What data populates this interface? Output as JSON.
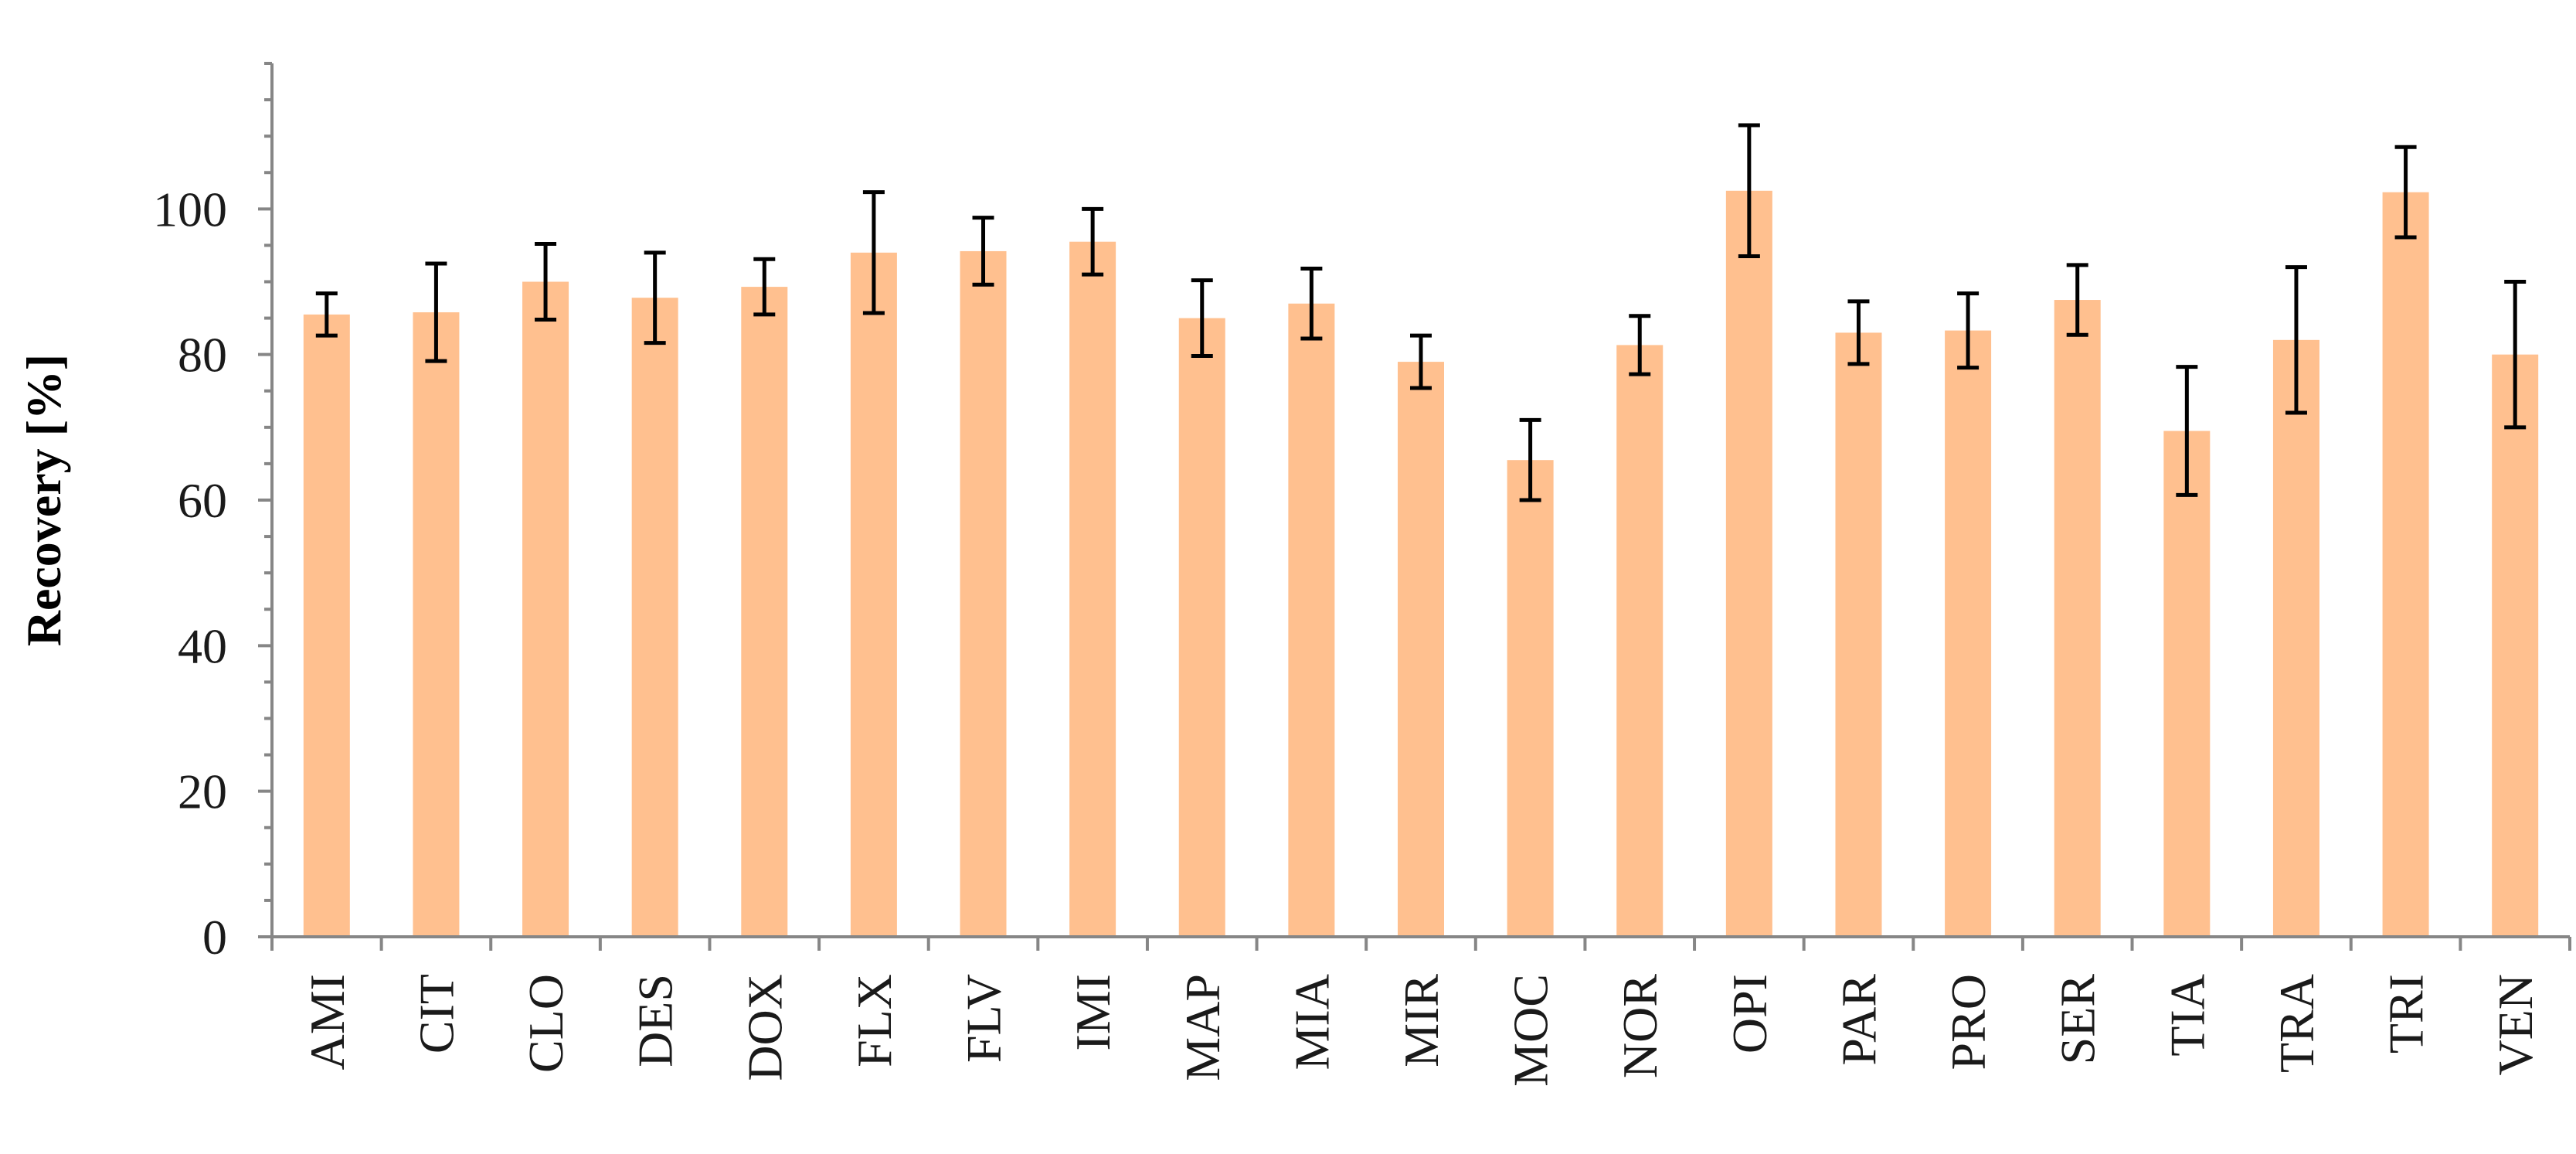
{
  "chart_data": {
    "type": "bar",
    "title": "",
    "xlabel": "",
    "ylabel": "Recovery [%]",
    "ylim": [
      0,
      120
    ],
    "yticks": [
      0,
      20,
      40,
      60,
      80,
      100
    ],
    "grid": false,
    "legend": "none",
    "colors": {
      "bar": "#FFC08F",
      "error_bar": "#000000",
      "axis": "#868686",
      "text": "#1a1a1a"
    },
    "categories": [
      "AMI",
      "CIT",
      "CLO",
      "DES",
      "DOX",
      "FLX",
      "FLV",
      "IMI",
      "MAP",
      "MIA",
      "MIR",
      "MOC",
      "NOR",
      "OPI",
      "PAR",
      "PRO",
      "SER",
      "TIA",
      "TRA",
      "TRI",
      "VEN"
    ],
    "values": [
      85.5,
      85.8,
      90.0,
      87.8,
      89.3,
      94.0,
      94.2,
      95.5,
      85.0,
      87.0,
      79.0,
      65.5,
      81.3,
      102.5,
      83.0,
      83.3,
      87.5,
      69.5,
      82.0,
      102.3,
      80.0
    ],
    "errors": [
      2.9,
      6.7,
      5.2,
      6.2,
      3.8,
      8.3,
      4.6,
      4.5,
      5.2,
      4.8,
      3.6,
      5.5,
      4.0,
      9.0,
      4.3,
      5.1,
      4.8,
      8.8,
      10.0,
      6.2,
      10.0
    ]
  }
}
